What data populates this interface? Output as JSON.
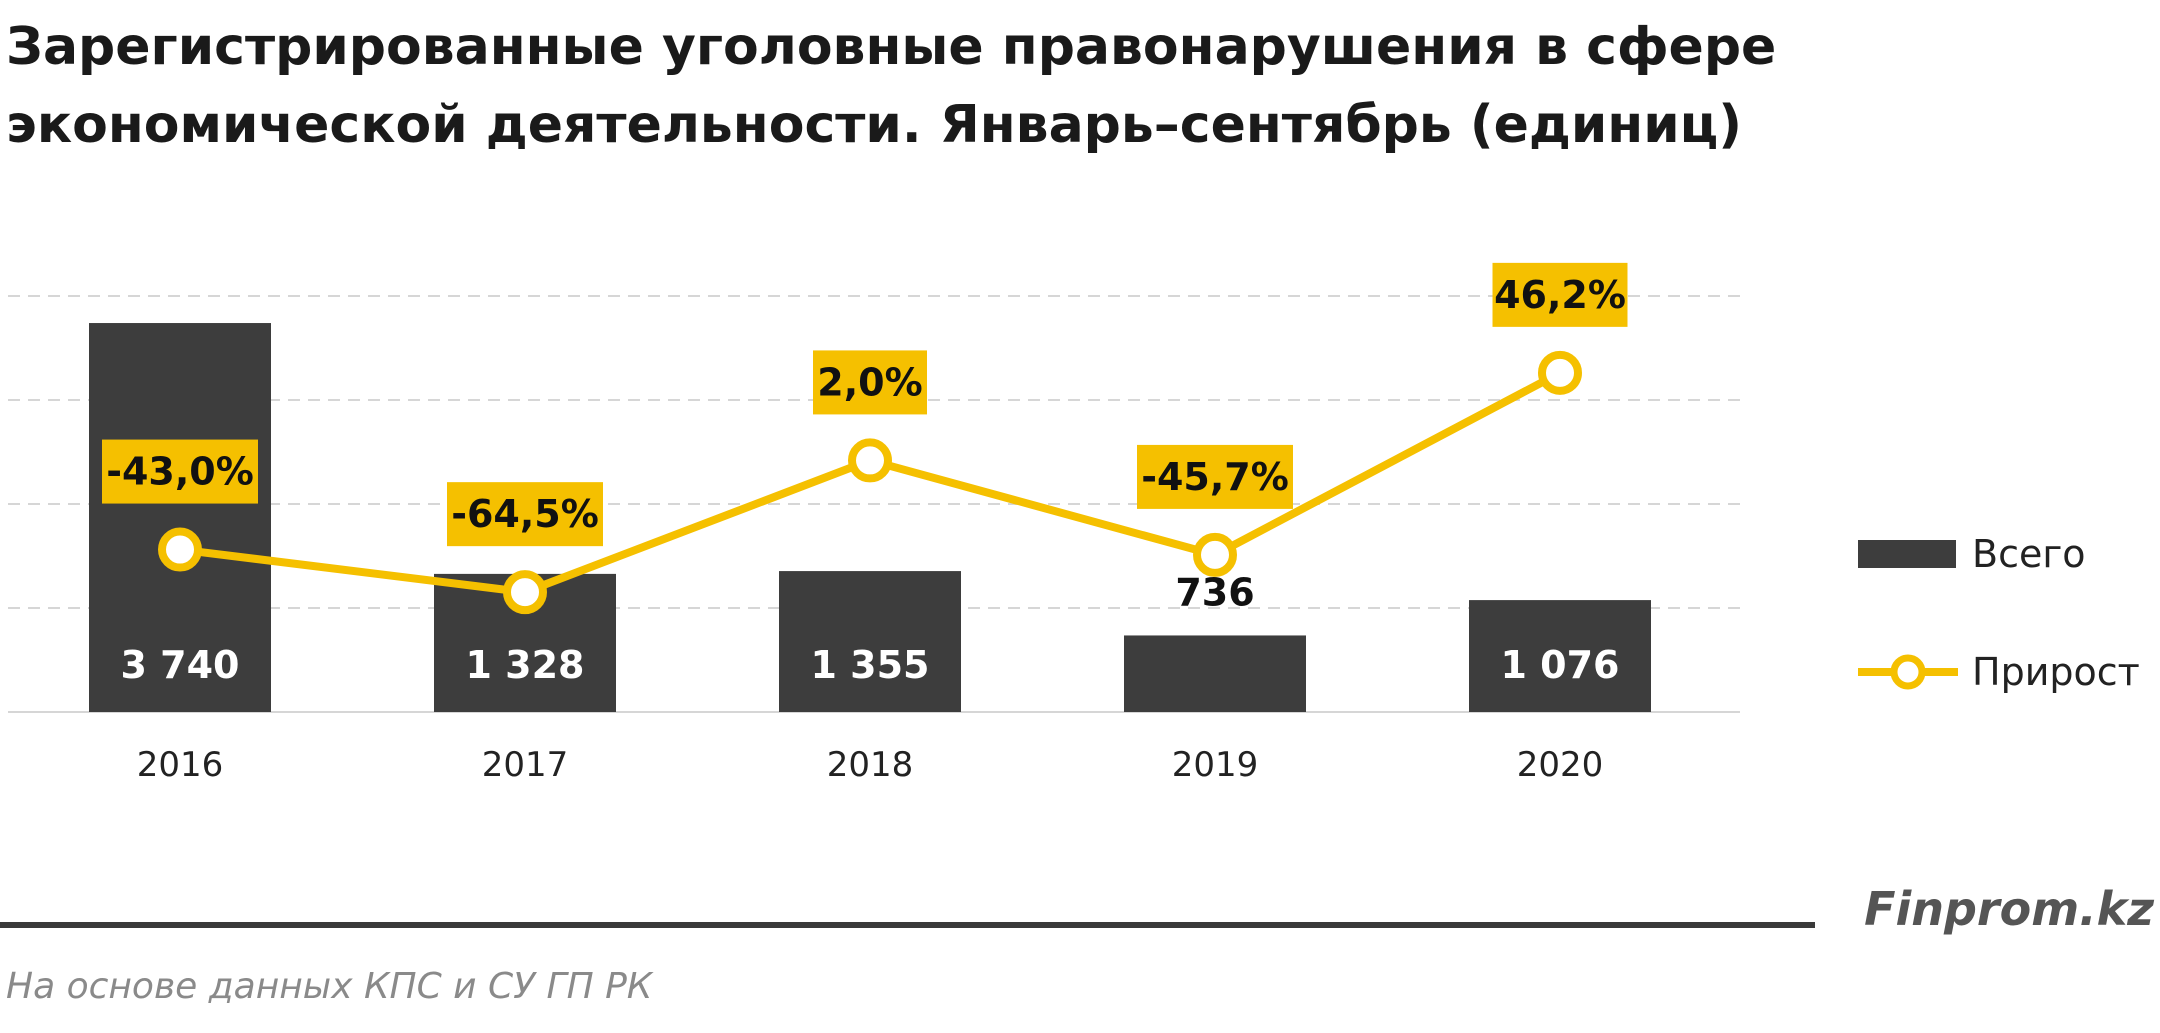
{
  "title_lines": [
    "Зарегистрированные уголовные правонарушения в сфере",
    "экономической деятельности. Январь–сентябрь (единиц)"
  ],
  "brand": "Finprom.kz",
  "source": "На основе данных КПС и СУ ГП РК",
  "colors": {
    "bar": "#3d3d3d",
    "line": "#f5c000",
    "label_bg": "#f5c000",
    "grid": "#d6d6d6"
  },
  "chart_data": {
    "type": "bar+line",
    "categories": [
      "2016",
      "2017",
      "2018",
      "2019",
      "2020"
    ],
    "series": [
      {
        "name": "Всего",
        "type": "bar",
        "values": [
          3740,
          1328,
          1355,
          736,
          1076
        ],
        "labels": [
          "3 740",
          "1 328",
          "1 355",
          "736",
          "1 076"
        ]
      },
      {
        "name": "Прирост",
        "type": "line",
        "unit": "%",
        "values": [
          -43.0,
          -64.5,
          2.0,
          -45.7,
          46.2
        ],
        "labels": [
          "-43,0%",
          "-64,5%",
          "2,0%",
          "-45,7%",
          "46,2%"
        ]
      }
    ],
    "legend_position": "right",
    "grid": true
  }
}
